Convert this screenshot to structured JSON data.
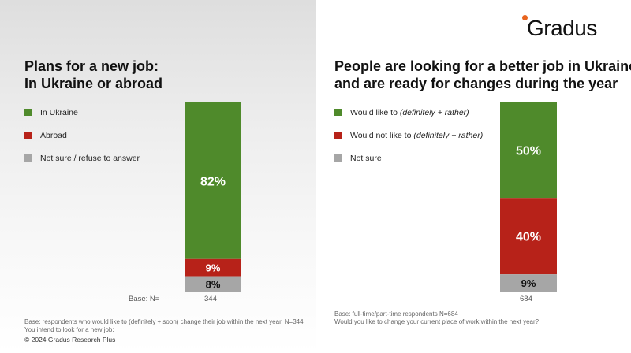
{
  "logo": {
    "text": "Gradus",
    "accent_color": "#e8641e"
  },
  "copyright": "© 2024 Gradus Research Plus",
  "left": {
    "title_line1": "Plans for a new job:",
    "title_line2": "In Ukraine or abroad",
    "legend": [
      {
        "label": "In Ukraine",
        "color": "#4f8a2b"
      },
      {
        "label": "Abroad",
        "color": "#b72219"
      },
      {
        "label": "Not sure / refuse to answer",
        "color": "#a6a6a6"
      }
    ],
    "base_label": "Base: N=",
    "base_n": "344",
    "footnote_line1": "Base: respondents who would like to (definitely + soon) change their job within the next year, N=344",
    "footnote_line2": "You intend to look for a new job:"
  },
  "right": {
    "title_line1": "People are looking for a better job in Ukraine",
    "title_line2": "and are ready for changes during the year",
    "legend": [
      {
        "label": "Would like to ",
        "italic": "(definitely + rather)",
        "color": "#4f8a2b"
      },
      {
        "label": "Would not like to ",
        "italic": "(definitely + rather)",
        "color": "#b72219"
      },
      {
        "label": "Not sure",
        "italic": "",
        "color": "#a6a6a6"
      }
    ],
    "base_n": "684",
    "footnote_line1": "Base: full-time/part-time respondents N=684",
    "footnote_line2": "Would you like to change your current place of work within the next year?"
  },
  "chart_data": [
    {
      "type": "bar",
      "stacked": true,
      "title": "Plans for a new job: In Ukraine or abroad",
      "categories": [
        "344"
      ],
      "series": [
        {
          "name": "In Ukraine",
          "values": [
            82
          ],
          "label": "82%",
          "color": "#4f8a2b"
        },
        {
          "name": "Abroad",
          "values": [
            9
          ],
          "label": "9%",
          "color": "#b72219"
        },
        {
          "name": "Not sure / refuse to answer",
          "values": [
            8
          ],
          "label": "8%",
          "color": "#a6a6a6"
        }
      ],
      "ylim": [
        0,
        100
      ]
    },
    {
      "type": "bar",
      "stacked": true,
      "title": "People are looking for a better job in Ukraine and are ready for changes during the year",
      "categories": [
        "684"
      ],
      "series": [
        {
          "name": "Would like to (definitely + rather)",
          "values": [
            50
          ],
          "label": "50%",
          "color": "#4f8a2b"
        },
        {
          "name": "Would not like to (definitely + rather)",
          "values": [
            40
          ],
          "label": "40%",
          "color": "#b72219"
        },
        {
          "name": "Not sure",
          "values": [
            9
          ],
          "label": "9%",
          "color": "#a6a6a6"
        }
      ],
      "ylim": [
        0,
        100
      ]
    }
  ]
}
